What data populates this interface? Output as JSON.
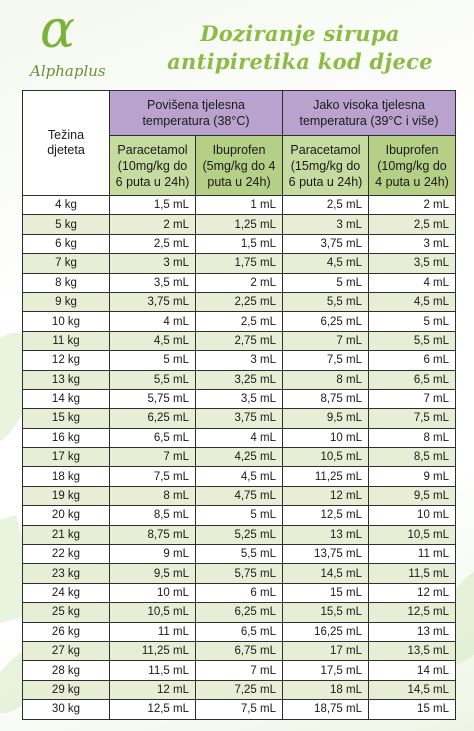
{
  "brand": {
    "symbol": "α",
    "name_alpha": "Alpha",
    "name_plus": "plus"
  },
  "title": {
    "line1": "Doziranje sirupa",
    "line2": "antipiretika kod djece"
  },
  "table": {
    "weight_header_line1": "Težina",
    "weight_header_line2": "djeteta",
    "groups": [
      {
        "line1": "Povišena tjelesna",
        "line2": "temperatura (38°C)"
      },
      {
        "line1": "Jako visoka tjelesna",
        "line2": "temperatura (39°C i više)"
      }
    ],
    "drugs": [
      {
        "line1": "Paracetamol",
        "line2": "(10mg/kg do",
        "line3": "6 puta u 24h)"
      },
      {
        "line1": "Ibuprofen",
        "line2": "(5mg/kg do 4",
        "line3": "puta u 24h)"
      },
      {
        "line1": "Paracetamol",
        "line2": "(15mg/kg do",
        "line3": "6 puta u 24h)"
      },
      {
        "line1": "Ibuprofen",
        "line2": "(10mg/kg do",
        "line3": "4 puta u 24h)"
      }
    ],
    "rows": [
      [
        "4 kg",
        "1,5 mL",
        "1 mL",
        "2,5 mL",
        "2 mL"
      ],
      [
        "5 kg",
        "2 mL",
        "1,25 mL",
        "3 mL",
        "2,5 mL"
      ],
      [
        "6 kg",
        "2,5 mL",
        "1,5 mL",
        "3,75 mL",
        "3 mL"
      ],
      [
        "7 kg",
        "3 mL",
        "1,75 mL",
        "4,5 mL",
        "3,5 mL"
      ],
      [
        "8 kg",
        "3,5 mL",
        "2 mL",
        "5 mL",
        "4 mL"
      ],
      [
        "9 kg",
        "3,75 mL",
        "2,25 mL",
        "5,5 mL",
        "4,5 mL"
      ],
      [
        "10 kg",
        "4 mL",
        "2,5 mL",
        "6,25 mL",
        "5 mL"
      ],
      [
        "11 kg",
        "4,5 mL",
        "2,75 mL",
        "7 mL",
        "5,5 mL"
      ],
      [
        "12 kg",
        "5 mL",
        "3 mL",
        "7,5 mL",
        "6 mL"
      ],
      [
        "13 kg",
        "5,5 mL",
        "3,25 mL",
        "8 mL",
        "6,5 mL"
      ],
      [
        "14 kg",
        "5,75 mL",
        "3,5 mL",
        "8,75 mL",
        "7 mL"
      ],
      [
        "15 kg",
        "6,25 mL",
        "3,75 mL",
        "9,5 mL",
        "7,5 mL"
      ],
      [
        "16 kg",
        "6,5 mL",
        "4 mL",
        "10 mL",
        "8 mL"
      ],
      [
        "17 kg",
        "7 mL",
        "4,25 mL",
        "10,5 mL",
        "8,5 mL"
      ],
      [
        "18 kg",
        "7,5 mL",
        "4,5 mL",
        "11,25 mL",
        "9 mL"
      ],
      [
        "19 kg",
        "8 mL",
        "4,75 mL",
        "12 mL",
        "9,5 mL"
      ],
      [
        "20 kg",
        "8,5 mL",
        "5 mL",
        "12,5 mL",
        "10 mL"
      ],
      [
        "21 kg",
        "8,75 mL",
        "5,25 mL",
        "13 mL",
        "10,5 mL"
      ],
      [
        "22 kg",
        "9 mL",
        "5,5 mL",
        "13,75 mL",
        "11 mL"
      ],
      [
        "23 kg",
        "9,5 mL",
        "5,75 mL",
        "14,5 mL",
        "11,5 mL"
      ],
      [
        "24 kg",
        "10 mL",
        "6 mL",
        "15 mL",
        "12 mL"
      ],
      [
        "25 kg",
        "10,5 mL",
        "6,25 mL",
        "15,5 mL",
        "12,5 mL"
      ],
      [
        "26 kg",
        "11 mL",
        "6,5 mL",
        "16,25 mL",
        "13 mL"
      ],
      [
        "27 kg",
        "11,25 mL",
        "6,75 mL",
        "17 mL",
        "13,5 mL"
      ],
      [
        "28 kg",
        "11,5 mL",
        "7 mL",
        "17,5 mL",
        "14 mL"
      ],
      [
        "29 kg",
        "12 mL",
        "7,25 mL",
        "18 mL",
        "14,5 mL"
      ],
      [
        "30 kg",
        "12,5 mL",
        "7,5 mL",
        "18,75 mL",
        "15 mL"
      ]
    ]
  },
  "colors": {
    "brand_green": "#7bb23a",
    "title_green": "#8cbc46",
    "group_header_purple": "#b9a3ce",
    "drug_header_green": "#c6dba0",
    "row_stripe_green": "#e6efd5"
  }
}
